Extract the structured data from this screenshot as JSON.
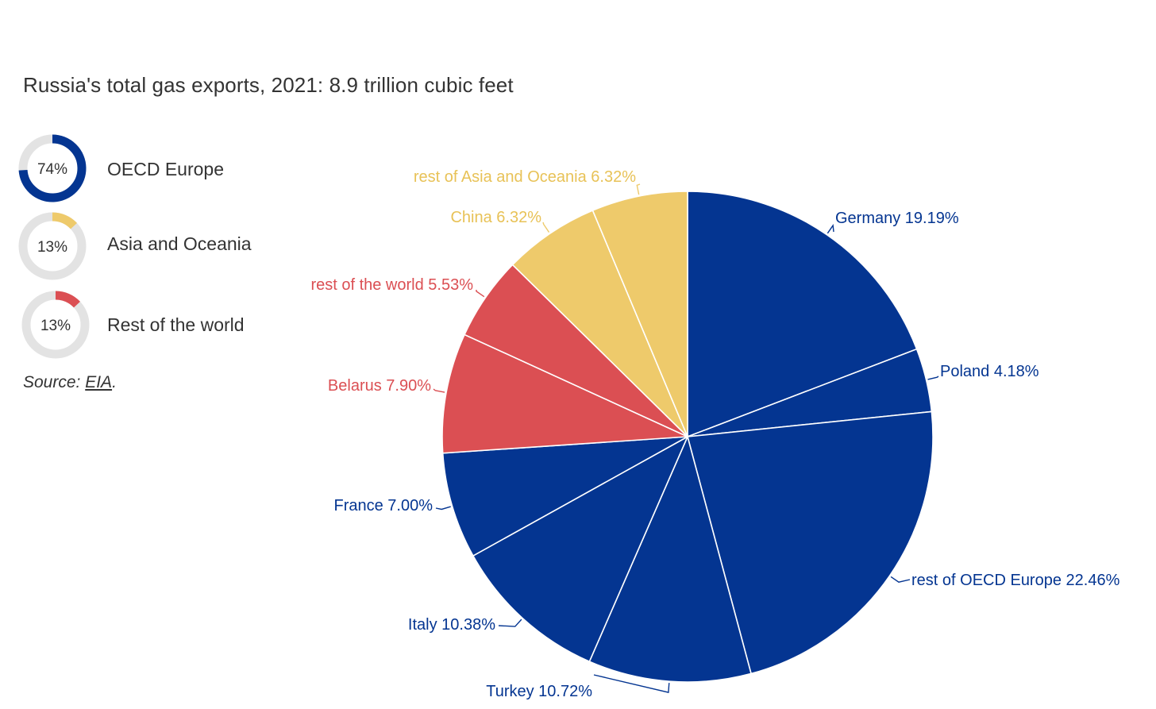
{
  "chart_data": {
    "type": "pie",
    "title": "Russia's total gas exports, 2021: 8.9 trillion cubic feet",
    "slices": [
      {
        "label": "Germany 19.19%",
        "value": 19.19,
        "group": "OECD Europe",
        "color": "#043591"
      },
      {
        "label": "Poland 4.18%",
        "value": 4.18,
        "group": "OECD Europe",
        "color": "#043591"
      },
      {
        "label": "rest of OECD Europe 22.46%",
        "value": 22.46,
        "group": "OECD Europe",
        "color": "#043591"
      },
      {
        "label": "Turkey 10.72%",
        "value": 10.72,
        "group": "OECD Europe",
        "color": "#043591"
      },
      {
        "label": "Italy 10.38%",
        "value": 10.38,
        "group": "OECD Europe",
        "color": "#043591"
      },
      {
        "label": "France 7.00%",
        "value": 7.0,
        "group": "OECD Europe",
        "color": "#043591"
      },
      {
        "label": "Belarus 7.90%",
        "value": 7.9,
        "group": "Rest of the world",
        "color": "#db4f53"
      },
      {
        "label": "rest of the world 5.53%",
        "value": 5.53,
        "group": "Rest of the world",
        "color": "#db4f53"
      },
      {
        "label": "China 6.32%",
        "value": 6.32,
        "group": "Asia and Oceania",
        "color": "#eeca6b"
      },
      {
        "label": "rest of Asia and Oceania 6.32%",
        "value": 6.32,
        "group": "Asia and Oceania",
        "color": "#eeca6b"
      }
    ],
    "groups": [
      {
        "name": "OECD Europe",
        "value": 74,
        "percent_label": "74%",
        "color": "#043591"
      },
      {
        "name": "Asia and Oceania",
        "value": 13,
        "percent_label": "13%",
        "color": "#eeca6b"
      },
      {
        "name": "Rest of the world",
        "value": 13,
        "percent_label": "13%",
        "color": "#db4f53"
      }
    ]
  },
  "source": {
    "prefix": "Source: ",
    "link_text": "EIA",
    "suffix": "."
  },
  "colors": {
    "text": "#333333",
    "ring_track": "#e3e3e3",
    "slice_border": "#ffffff"
  }
}
